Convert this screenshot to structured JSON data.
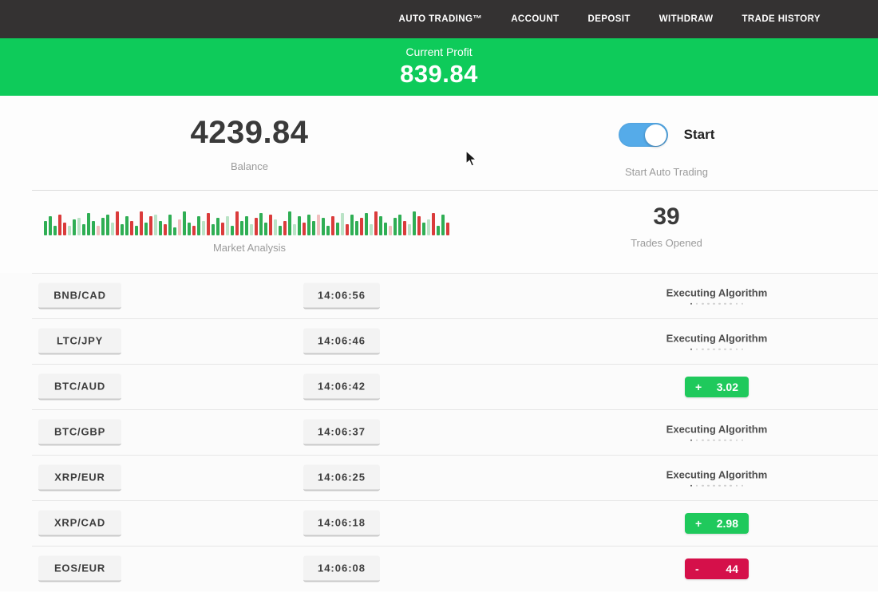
{
  "nav": {
    "items": [
      {
        "label": "AUTO TRADING™"
      },
      {
        "label": "ACCOUNT"
      },
      {
        "label": "DEPOSIT"
      },
      {
        "label": "WITHDRAW"
      },
      {
        "label": "TRADE HISTORY"
      }
    ]
  },
  "banner": {
    "title": "Current Profit",
    "value": "839.84"
  },
  "stats": {
    "balance": {
      "value": "4239.84",
      "label": "Balance"
    },
    "auto_trading": {
      "toggle_state": "on",
      "toggle_label": "Start",
      "label": "Start Auto Trading"
    },
    "market_analysis": {
      "label": "Market Analysis",
      "bars": [
        "g18",
        "g24",
        "g12",
        "r26",
        "r16",
        "G12",
        "g20",
        "G22",
        "g14",
        "g28",
        "g18",
        "R12",
        "g22",
        "g26",
        "G16",
        "r30",
        "g14",
        "g24",
        "r18",
        "g12",
        "r30",
        "g16",
        "r24",
        "G26",
        "g18",
        "r14",
        "g26",
        "g10",
        "R20",
        "g30",
        "g16",
        "r12",
        "g24",
        "G18",
        "r28",
        "g14",
        "g22",
        "r16",
        "G24",
        "g12",
        "r30",
        "g18",
        "g24",
        "G14",
        "r22",
        "g28",
        "g16",
        "r26",
        "G20",
        "g12",
        "r18",
        "g30",
        "G14",
        "g24",
        "r16",
        "g26",
        "g18",
        "R26",
        "g22",
        "g12",
        "r24",
        "g16",
        "G28",
        "r14",
        "g26",
        "g18",
        "r22",
        "g28",
        "G14",
        "r30",
        "g24",
        "g16",
        "R12",
        "g22",
        "g26",
        "r18",
        "G14",
        "g30",
        "r24",
        "g16",
        "G20",
        "r28",
        "g12",
        "g26",
        "r16"
      ]
    },
    "trades_opened": {
      "value": "39",
      "label": "Trades Opened"
    }
  },
  "trades": {
    "executing_label": "Executing Algorithm",
    "progress_dots": {
      "total": 10,
      "active": 1
    },
    "rows": [
      {
        "pair": "BNB/CAD",
        "time": "14:06:56",
        "status": "executing"
      },
      {
        "pair": "LTC/JPY",
        "time": "14:06:46",
        "status": "executing"
      },
      {
        "pair": "BTC/AUD",
        "time": "14:06:42",
        "status": "profit",
        "sign": "+",
        "value": "3.02"
      },
      {
        "pair": "BTC/GBP",
        "time": "14:06:37",
        "status": "executing"
      },
      {
        "pair": "XRP/EUR",
        "time": "14:06:25",
        "status": "executing"
      },
      {
        "pair": "XRP/CAD",
        "time": "14:06:18",
        "status": "profit",
        "sign": "+",
        "value": "2.98"
      },
      {
        "pair": "EOS/EUR",
        "time": "14:06:08",
        "status": "loss",
        "sign": "-",
        "value": "44"
      }
    ]
  },
  "colors": {
    "nav_bg": "#343232",
    "banner_green": "#0ecb5a",
    "profit_green": "#1fc95c",
    "loss_red": "#d5104a",
    "toggle_blue": "#55abe9",
    "candle_green": "#2fae54",
    "candle_red": "#da3b3b"
  }
}
